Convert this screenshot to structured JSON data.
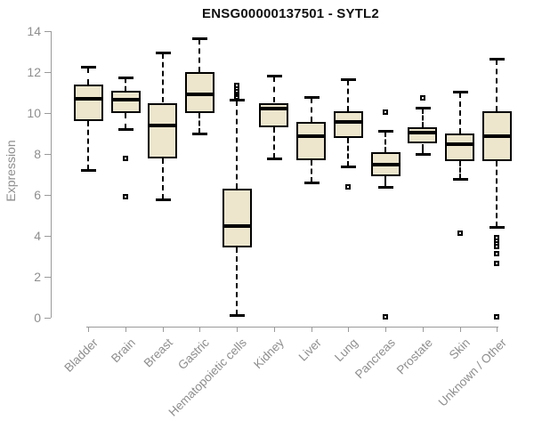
{
  "title": "ENSG00000137501 - SYTL2",
  "colors": {
    "box_fill": "#ede6cd",
    "box_border": "#000000",
    "median": "#000000",
    "whisker": "#000000",
    "axis": "#9a9a9a",
    "tick_label": "#8e8e8e",
    "title": "#111111",
    "background": "#ffffff"
  },
  "chart_data": {
    "type": "boxplot",
    "title": "ENSG00000137501 - SYTL2",
    "xlabel": "",
    "ylabel": "Expression",
    "ylim": [
      0,
      14
    ],
    "y_ticks": [
      0,
      2,
      4,
      6,
      8,
      10,
      12,
      14
    ],
    "grid": false,
    "legend": "none",
    "categories": [
      "Bladder",
      "Brain",
      "Breast",
      "Gastric",
      "Hematopoietic cells",
      "Kidney",
      "Liver",
      "Lung",
      "Pancreas",
      "Prostate",
      "Skin",
      "Unknown / Other"
    ],
    "boxes": [
      {
        "category": "Bladder",
        "whisker_low": 7.2,
        "q1": 9.6,
        "median": 10.7,
        "q3": 11.4,
        "whisker_high": 12.2,
        "outliers": []
      },
      {
        "category": "Brain",
        "whisker_low": 9.2,
        "q1": 10.0,
        "median": 10.65,
        "q3": 11.1,
        "whisker_high": 11.7,
        "outliers": [
          7.8,
          5.9
        ]
      },
      {
        "category": "Breast",
        "whisker_low": 5.8,
        "q1": 7.8,
        "median": 9.4,
        "q3": 10.5,
        "whisker_high": 12.9,
        "outliers": []
      },
      {
        "category": "Gastric",
        "whisker_low": 9.0,
        "q1": 10.0,
        "median": 10.9,
        "q3": 12.0,
        "whisker_high": 13.6,
        "outliers": []
      },
      {
        "category": "Hematopoietic cells",
        "whisker_low": 0.15,
        "q1": 3.45,
        "median": 4.5,
        "q3": 6.3,
        "whisker_high": 10.6,
        "outliers": [
          10.7,
          10.8,
          10.9,
          11.0,
          11.1,
          11.2,
          11.35
        ]
      },
      {
        "category": "Kidney",
        "whisker_low": 7.8,
        "q1": 9.3,
        "median": 10.2,
        "q3": 10.5,
        "whisker_high": 11.8,
        "outliers": []
      },
      {
        "category": "Liver",
        "whisker_low": 6.6,
        "q1": 7.7,
        "median": 8.85,
        "q3": 9.55,
        "whisker_high": 10.75,
        "outliers": []
      },
      {
        "category": "Lung",
        "whisker_low": 7.4,
        "q1": 8.8,
        "median": 9.55,
        "q3": 10.1,
        "whisker_high": 11.6,
        "outliers": [
          6.4
        ]
      },
      {
        "category": "Pancreas",
        "whisker_low": 6.4,
        "q1": 6.9,
        "median": 7.5,
        "q3": 8.1,
        "whisker_high": 9.1,
        "outliers": [
          10.05,
          0.05
        ]
      },
      {
        "category": "Prostate",
        "whisker_low": 8.0,
        "q1": 8.5,
        "median": 9.05,
        "q3": 9.3,
        "whisker_high": 10.2,
        "outliers": [
          10.75
        ]
      },
      {
        "category": "Skin",
        "whisker_low": 6.8,
        "q1": 7.65,
        "median": 8.5,
        "q3": 9.0,
        "whisker_high": 11.0,
        "outliers": [
          4.15
        ]
      },
      {
        "category": "Unknown / Other",
        "whisker_low": 4.45,
        "q1": 7.65,
        "median": 8.85,
        "q3": 10.1,
        "whisker_high": 12.6,
        "outliers": [
          3.9,
          3.75,
          3.6,
          3.5,
          3.15,
          2.65,
          0.05
        ]
      }
    ]
  }
}
